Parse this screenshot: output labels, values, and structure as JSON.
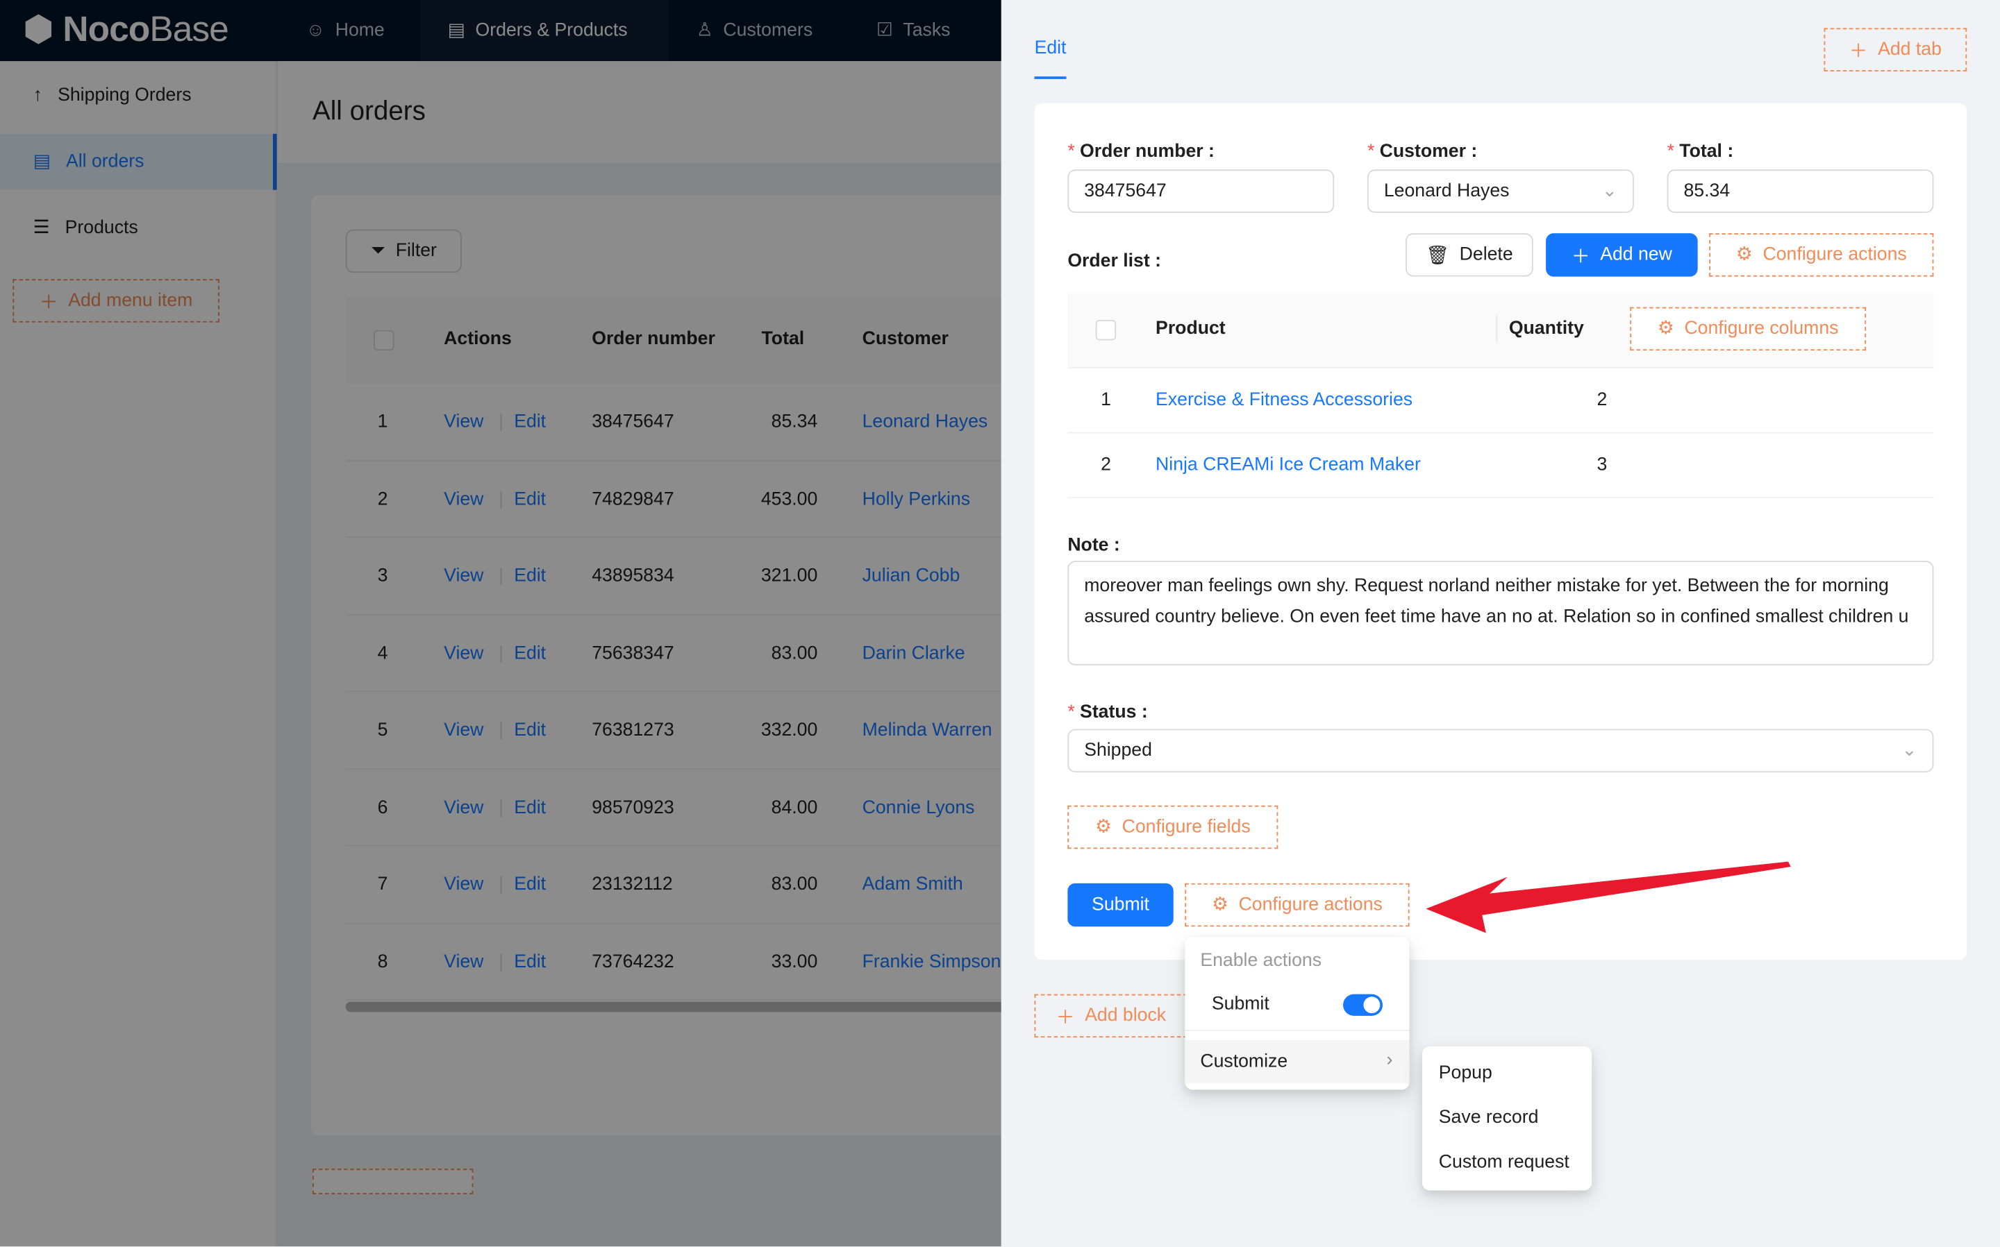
{
  "app": {
    "logo_bold": "Noco",
    "logo_thin": "Base"
  },
  "topnav": [
    {
      "label": "Home",
      "icon": "smile-icon"
    },
    {
      "label": "Orders & Products",
      "icon": "file-check-icon",
      "active": true
    },
    {
      "label": "Customers",
      "icon": "users-icon"
    },
    {
      "label": "Tasks",
      "icon": "checkbox-icon"
    }
  ],
  "sidebar": {
    "items": [
      {
        "label": "Shipping Orders",
        "icon": "arrow-up-icon"
      },
      {
        "label": "All orders",
        "icon": "file-check-icon",
        "selected": true
      },
      {
        "label": "Products",
        "icon": "list-icon"
      }
    ],
    "add_menu_item": "Add menu item"
  },
  "page": {
    "title": "All orders",
    "filter_label": "Filter",
    "columns": [
      "Actions",
      "Order number",
      "Total",
      "Customer"
    ],
    "view_label": "View",
    "edit_label": "Edit",
    "rows": [
      {
        "n": "1",
        "order": "38475647",
        "total": "85.34",
        "customer": "Leonard Hayes"
      },
      {
        "n": "2",
        "order": "74829847",
        "total": "453.00",
        "customer": "Holly Perkins"
      },
      {
        "n": "3",
        "order": "43895834",
        "total": "321.00",
        "customer": "Julian Cobb"
      },
      {
        "n": "4",
        "order": "75638347",
        "total": "83.00",
        "customer": "Darin Clarke"
      },
      {
        "n": "5",
        "order": "76381273",
        "total": "332.00",
        "customer": "Melinda Warren"
      },
      {
        "n": "6",
        "order": "98570923",
        "total": "84.00",
        "customer": "Connie Lyons"
      },
      {
        "n": "7",
        "order": "23132112",
        "total": "83.00",
        "customer": "Adam Smith"
      },
      {
        "n": "8",
        "order": "73764232",
        "total": "33.00",
        "customer": "Frankie Simpson"
      }
    ]
  },
  "drawer": {
    "tab": "Edit",
    "add_tab": "Add tab",
    "form": {
      "order_number": {
        "label": "Order number",
        "value": "38475647"
      },
      "customer": {
        "label": "Customer",
        "value": "Leonard Hayes"
      },
      "total": {
        "label": "Total",
        "value": "85.34"
      },
      "order_list": {
        "label": "Order list",
        "delete": "Delete",
        "add_new": "Add new",
        "configure_actions": "Configure actions",
        "columns": [
          "Product",
          "Quantity"
        ],
        "configure_columns": "Configure columns",
        "rows": [
          {
            "n": "1",
            "product": "Exercise & Fitness Accessories",
            "quantity": "2"
          },
          {
            "n": "2",
            "product": "Ninja CREAMi Ice Cream Maker",
            "quantity": "3"
          }
        ]
      },
      "note": {
        "label": "Note",
        "value": "moreover man feelings own shy. Request norland neither mistake for yet. Between the for morning assured country believe. On even feet time have an no at. Relation so in confined smallest children u"
      },
      "status": {
        "label": "Status",
        "value": "Shipped"
      },
      "configure_fields": "Configure fields",
      "submit": "Submit",
      "configure_actions": "Configure actions"
    },
    "add_block": "Add block",
    "actions_menu": {
      "group_title": "Enable actions",
      "submit_toggle": {
        "label": "Submit",
        "on": true
      },
      "customize": "Customize",
      "submenu": [
        "Popup",
        "Save record",
        "Custom request"
      ]
    }
  },
  "colors": {
    "primary": "#1677ff",
    "dashed_accent": "#f18b57",
    "annotation_arrow": "#e8192c",
    "nav_bg": "#001529"
  }
}
